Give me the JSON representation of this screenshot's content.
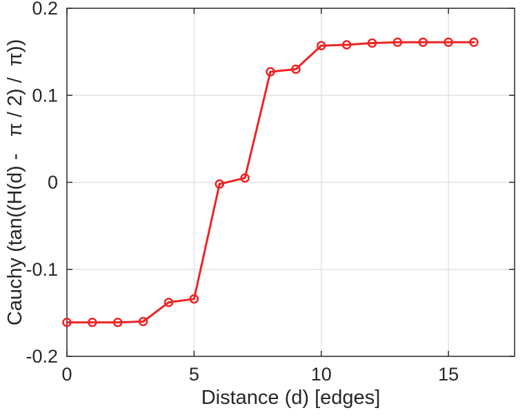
{
  "figure": {
    "background": "#ffffff"
  },
  "chart_data": {
    "type": "line",
    "title": "",
    "xlabel": "Distance (d) [edges]",
    "ylabel": "Cauchy (tan((H(d) -   π / 2) /  π))",
    "x": [
      0,
      1,
      2,
      3,
      4,
      5,
      6,
      7,
      8,
      9,
      10,
      11,
      12,
      13,
      14,
      15,
      16
    ],
    "series": [
      {
        "name": "Cauchy",
        "values": [
          -0.161,
          -0.161,
          -0.161,
          -0.16,
          -0.138,
          -0.134,
          -0.002,
          0.005,
          0.127,
          0.13,
          0.157,
          0.158,
          0.16,
          0.161,
          0.161,
          0.161,
          0.161
        ]
      }
    ],
    "xlim": [
      0,
      17.6
    ],
    "ylim": [
      -0.2,
      0.2
    ],
    "xticks": [
      0,
      5,
      10,
      15
    ],
    "xtick_labels": [
      "0",
      "5",
      "10",
      "15"
    ],
    "yticks": [
      -0.2,
      -0.1,
      0,
      0.1,
      0.2
    ],
    "ytick_labels": [
      "-0.2",
      "-0.1",
      "0",
      "0.1",
      "0.2"
    ],
    "grid": true,
    "legend_position": "none",
    "line_color": "#ee2222",
    "marker": "o",
    "marker_fill": "none",
    "grid_color": "#dedede",
    "axis_color": "#262626",
    "tick_direction": "in"
  }
}
